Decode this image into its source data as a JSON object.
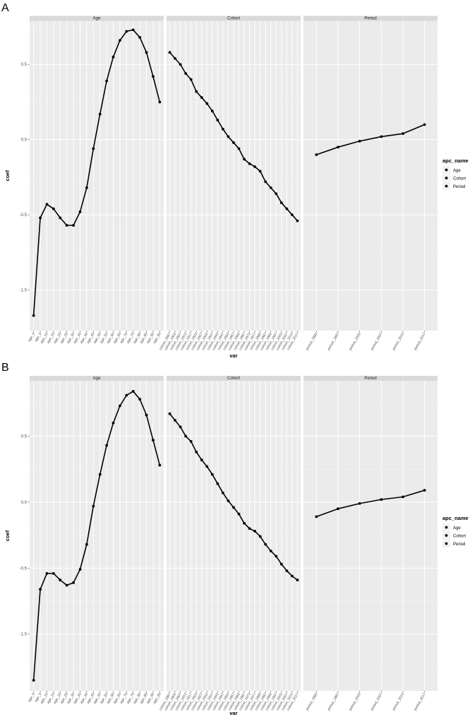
{
  "chart_data": [
    {
      "type": "line",
      "label": "A",
      "xlabel": "var",
      "ylabel": "coef",
      "ylim": [
        -1.27,
        0.79
      ],
      "yticks": [
        -1.0,
        -0.5,
        0.0,
        0.5
      ],
      "ytick_labels": [
        "-1.0",
        "-0.5",
        "0.0",
        "0.5"
      ],
      "grid": true,
      "legend": {
        "title": "apc_name",
        "position": "right",
        "entries": [
          "Age",
          "Cohort",
          "Period"
        ]
      },
      "facets": [
        {
          "name": "Age",
          "categories": [
            "age_0",
            "age_5",
            "age_10",
            "age_15",
            "age_20",
            "age_25",
            "age_30",
            "age_35",
            "age_40",
            "age_45",
            "age_50",
            "age_55",
            "age_60",
            "age_65",
            "age_70",
            "age_75",
            "age_80",
            "age_85",
            "age_90",
            "age_95"
          ],
          "values": [
            -1.17,
            -0.52,
            -0.43,
            -0.46,
            -0.52,
            -0.57,
            -0.57,
            -0.48,
            -0.32,
            -0.06,
            0.17,
            0.39,
            0.55,
            0.66,
            0.72,
            0.73,
            0.68,
            0.58,
            0.42,
            0.25
          ]
        },
        {
          "name": "Cohort",
          "categories": [
            "cohort_1897",
            "cohort_1902",
            "cohort_1907",
            "cohort_1912",
            "cohort_1917",
            "cohort_1922",
            "cohort_1927",
            "cohort_1932",
            "cohort_1937",
            "cohort_1942",
            "cohort_1947",
            "cohort_1952",
            "cohort_1957",
            "cohort_1962",
            "cohort_1967",
            "cohort_1972",
            "cohort_1977",
            "cohort_1982",
            "cohort_1987",
            "cohort_1992",
            "cohort_1997",
            "cohort_2002",
            "cohort_2007",
            "cohort_2012",
            "cohort_2017"
          ],
          "values": [
            0.58,
            0.54,
            0.5,
            0.44,
            0.4,
            0.32,
            0.28,
            0.24,
            0.19,
            0.13,
            0.07,
            0.02,
            -0.02,
            -0.06,
            -0.13,
            -0.16,
            -0.18,
            -0.21,
            -0.28,
            -0.32,
            -0.36,
            -0.42,
            -0.46,
            -0.5,
            -0.54
          ]
        },
        {
          "name": "Period",
          "categories": [
            "period_1992",
            "period_1997",
            "period_2002",
            "period_2007",
            "period_2012",
            "period_2017"
          ],
          "values": [
            -0.1,
            -0.05,
            -0.01,
            0.02,
            0.04,
            0.1
          ]
        }
      ]
    },
    {
      "type": "line",
      "label": "B",
      "xlabel": "var",
      "ylabel": "coef",
      "ylim": [
        -1.43,
        0.92
      ],
      "yticks": [
        -1.0,
        -0.5,
        0.0,
        0.5
      ],
      "ytick_labels": [
        "-1.0",
        "-0.5",
        "0.0",
        "0.5"
      ],
      "grid": true,
      "legend": {
        "title": "apc_name",
        "position": "right",
        "entries": [
          "Age",
          "Cohort",
          "Period"
        ]
      },
      "facets": [
        {
          "name": "Age",
          "categories": [
            "age_0",
            "age_5",
            "age_10",
            "age_15",
            "age_20",
            "age_25",
            "age_30",
            "age_35",
            "age_40",
            "age_45",
            "age_50",
            "age_55",
            "age_60",
            "age_65",
            "age_70",
            "age_75",
            "age_80",
            "age_85",
            "age_90",
            "age_95"
          ],
          "values": [
            -1.35,
            -0.66,
            -0.54,
            -0.54,
            -0.59,
            -0.63,
            -0.61,
            -0.51,
            -0.32,
            -0.03,
            0.21,
            0.43,
            0.6,
            0.73,
            0.81,
            0.84,
            0.78,
            0.66,
            0.47,
            0.28
          ]
        },
        {
          "name": "Cohort",
          "categories": [
            "cohort_1897",
            "cohort_1902",
            "cohort_1907",
            "cohort_1912",
            "cohort_1917",
            "cohort_1922",
            "cohort_1927",
            "cohort_1932",
            "cohort_1937",
            "cohort_1942",
            "cohort_1947",
            "cohort_1952",
            "cohort_1957",
            "cohort_1962",
            "cohort_1967",
            "cohort_1972",
            "cohort_1977",
            "cohort_1982",
            "cohort_1987",
            "cohort_1992",
            "cohort_1997",
            "cohort_2002",
            "cohort_2007",
            "cohort_2012",
            "cohort_2017"
          ],
          "values": [
            0.67,
            0.62,
            0.57,
            0.5,
            0.46,
            0.38,
            0.32,
            0.27,
            0.21,
            0.14,
            0.07,
            0.01,
            -0.04,
            -0.09,
            -0.16,
            -0.2,
            -0.22,
            -0.26,
            -0.32,
            -0.37,
            -0.41,
            -0.47,
            -0.52,
            -0.56,
            -0.59
          ]
        },
        {
          "name": "Period",
          "categories": [
            "period_1992",
            "period_1997",
            "period_2002",
            "period_2007",
            "period_2012",
            "period_2017"
          ],
          "values": [
            -0.11,
            -0.05,
            -0.01,
            0.02,
            0.04,
            0.09
          ]
        }
      ]
    }
  ]
}
